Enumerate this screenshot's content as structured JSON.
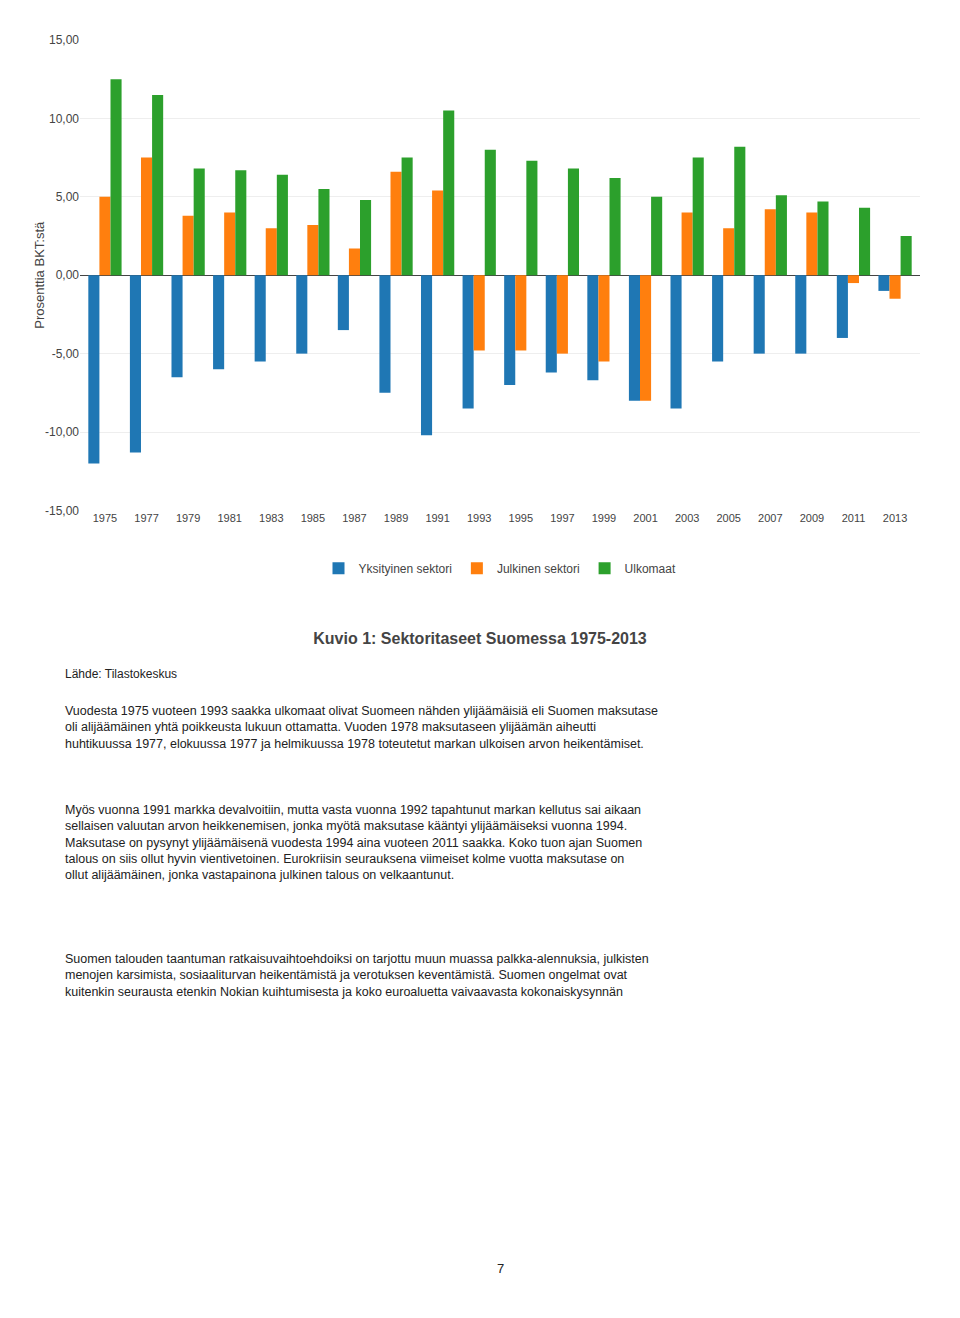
{
  "chart_data": {
    "type": "bar",
    "title": "Kuvio 1: Sektoritaseet Suomessa 1975-2013",
    "categories": [
      "1975",
      "1977",
      "1979",
      "1981",
      "1983",
      "1985",
      "1987",
      "1989",
      "1991",
      "1993",
      "1995",
      "1997",
      "1999",
      "2001",
      "2003",
      "2005",
      "2007",
      "2009",
      "2011",
      "2013"
    ],
    "series": [
      {
        "name": "Yksityinen sektori",
        "values": [
          -12.0,
          -11.3,
          -6.5,
          -6.0,
          -5.5,
          -5.0,
          -3.5,
          -7.5,
          -10.2,
          -8.5,
          -7.0,
          -6.2,
          -6.7,
          -8.0,
          -8.5,
          -5.5,
          -5.0,
          -5.0,
          -4.0,
          -1.0
        ]
      },
      {
        "name": "Julkinen sektori",
        "values": [
          5.0,
          7.5,
          3.8,
          4.0,
          3.0,
          3.2,
          1.7,
          6.6,
          5.4,
          -4.8,
          -4.8,
          -5.0,
          -5.5,
          -8.0,
          4.0,
          3.0,
          4.2,
          4.0,
          -0.5,
          -1.5
        ]
      },
      {
        "name": "Ulkomaat",
        "values": [
          12.5,
          11.5,
          6.8,
          6.7,
          6.4,
          5.5,
          4.8,
          7.5,
          10.5,
          8.0,
          7.3,
          6.8,
          6.2,
          5.0,
          7.5,
          8.2,
          5.1,
          4.7,
          4.3,
          2.5
        ]
      }
    ],
    "ylabel": "Prosenttia BKT:stä",
    "ylim": [
      -15.0,
      15.0
    ],
    "yticks": [
      {
        "value": -15.0,
        "label": "-15,00"
      },
      {
        "value": -10.0,
        "label": "-10,00"
      },
      {
        "value": -5.0,
        "label": "-5,00"
      },
      {
        "value": 0.0,
        "label": "0,00"
      },
      {
        "value": 5.0,
        "label": "5,00"
      },
      {
        "value": 10.0,
        "label": "10,00"
      },
      {
        "value": 15.0,
        "label": "15,00"
      }
    ],
    "grid": true,
    "legend": "bottom",
    "annotations": [
      "Lähde: Tilastokeskus",
      "Vuodesta 1975 vuoteen 1993 saakka ulkomaat olivat Suomeen nähden ylijäämäisiä eli Suomen maksutase\noli alijäämäinen yhtä poikkeusta lukuun ottamatta. Vuoden 1978 maksutaseen ylijäämän aiheutti\nhuhtikuussa 1977, elokuussa 1977 ja helmikuussa 1978 toteutetut markan ulkoisen arvon heikentämiset.",
      "Myös vuonna 1991 markka devalvoitiin, mutta vasta vuonna 1992 tapahtunut markan kellutus sai aikaan\nsellaisen valuutan arvon heikkenemisen, jonka myötä maksutase kääntyi ylijäämäiseksi vuonna 1994.\nMaksutase on pysynyt ylijäämäisenä vuodesta 1994 aina vuoteen 2011 saakka. Koko tuon ajan Suomen\ntalous on siis ollut hyvin vientivetoinen. Eurokriisin seurauksena viimeiset kolme vuotta maksutase on\nollut alijäämäinen, jonka vastapainona julkinen talous on velkaantunut.",
      "Suomen talouden taantuman ratkaisuvaihtoehdoiksi on tarjottu muun muassa palkka-alennuksia, julkisten\nmenojen karsimista, sosiaaliturvan heikentämistä ja verotuksen keventämistä. Suomen ongelmat ovat\nkuitenkin seurausta etenkin Nokian kuihtumisesta ja koko euroaluetta vaivaavasta kokonaiskysynnän",
      "7"
    ]
  }
}
